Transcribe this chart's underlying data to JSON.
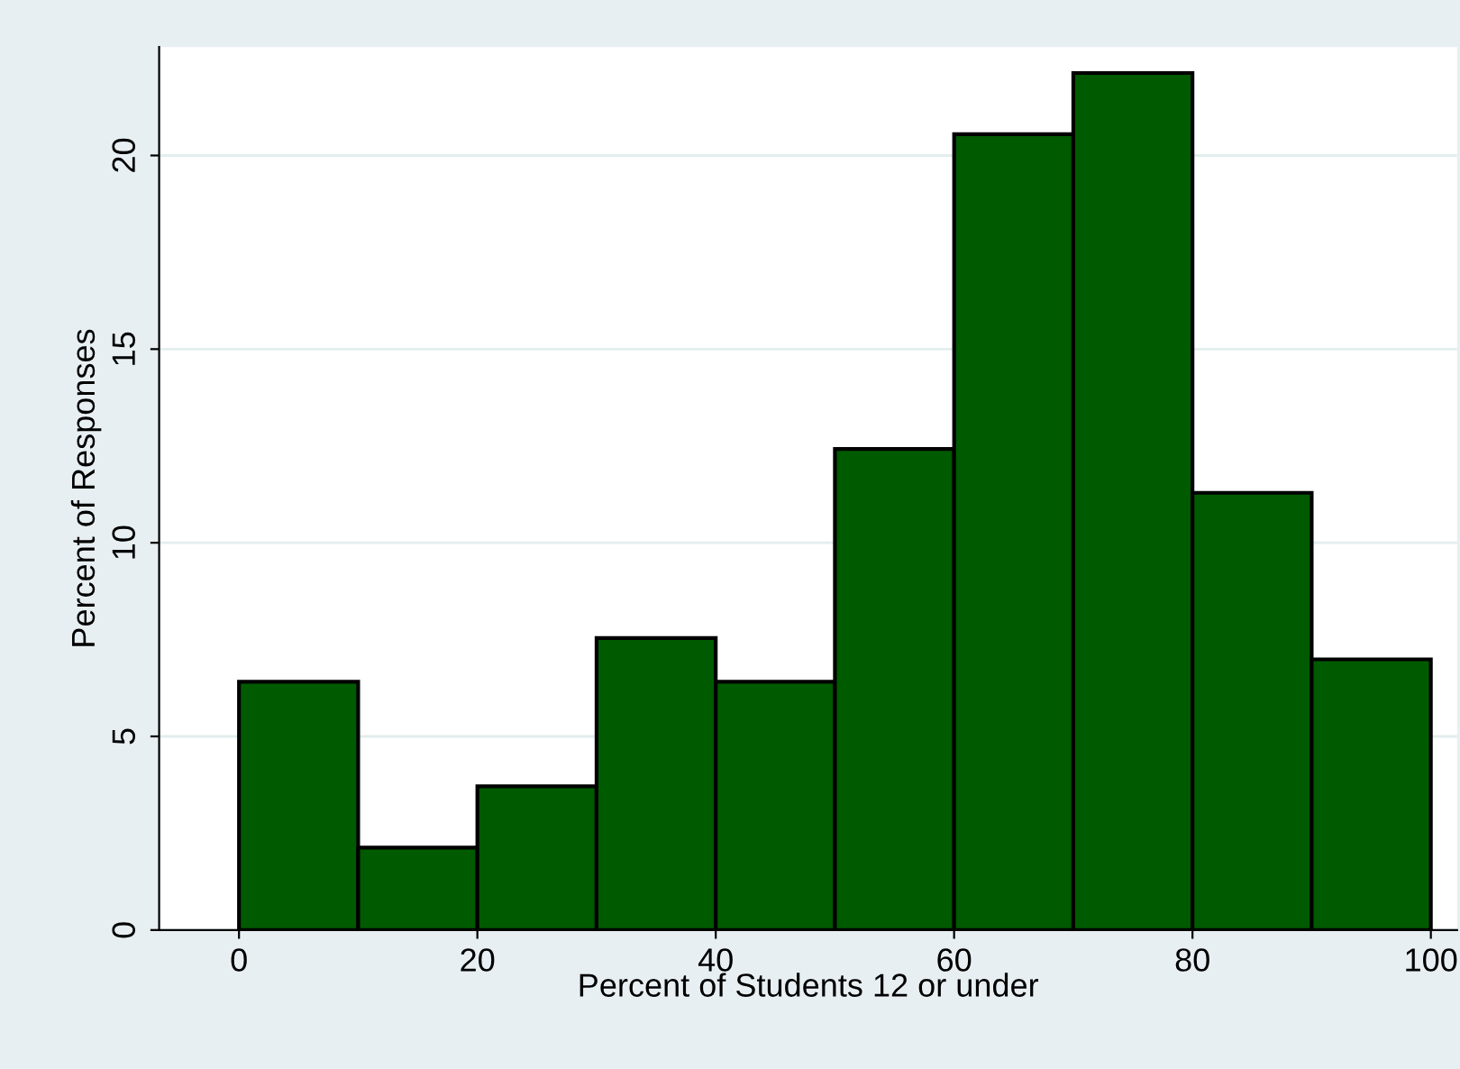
{
  "chart_data": {
    "type": "histogram",
    "xlabel": "Percent of Students 12 or under",
    "ylabel": "Percent of Responses",
    "bins": [
      0,
      10,
      20,
      30,
      40,
      50,
      60,
      70,
      80,
      90,
      100
    ],
    "values": [
      6.41,
      2.13,
      3.71,
      7.54,
      6.41,
      12.42,
      20.55,
      22.13,
      11.29,
      6.99
    ],
    "color": "#005a00",
    "xlim": [
      -6.7,
      102.2
    ],
    "ylim": [
      0,
      22.8
    ],
    "xticks": [
      0,
      20,
      40,
      60,
      80,
      100
    ],
    "yticks": [
      0,
      5,
      10,
      15,
      20
    ],
    "grid": "y"
  }
}
